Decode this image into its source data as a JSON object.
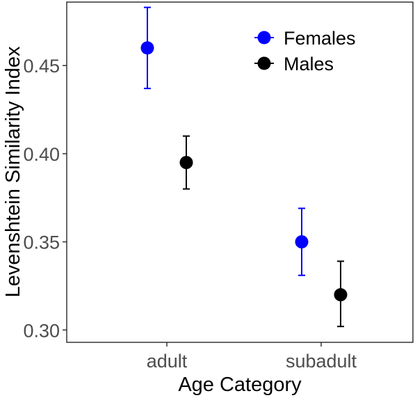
{
  "chart_data": {
    "type": "scatter",
    "subtype": "point-with-errorbars",
    "xlabel": "Age Category",
    "ylabel": "Levenshtein Similarity Index",
    "categories": [
      "adult",
      "subadult"
    ],
    "ylim": [
      0.293,
      0.486
    ],
    "yticks": [
      0.3,
      0.35,
      0.4,
      0.45
    ],
    "ytick_labels": [
      "0.30",
      "0.35",
      "0.40",
      "0.45"
    ],
    "grid": false,
    "legend_position": "top-right",
    "series": [
      {
        "name": "Females",
        "color": "#0000ff",
        "values": [
          0.46,
          0.35
        ],
        "lower": [
          0.437,
          0.331
        ],
        "upper": [
          0.483,
          0.369
        ]
      },
      {
        "name": "Males",
        "color": "#000000",
        "values": [
          0.395,
          0.32
        ],
        "lower": [
          0.38,
          0.302
        ],
        "upper": [
          0.41,
          0.339
        ]
      }
    ]
  }
}
